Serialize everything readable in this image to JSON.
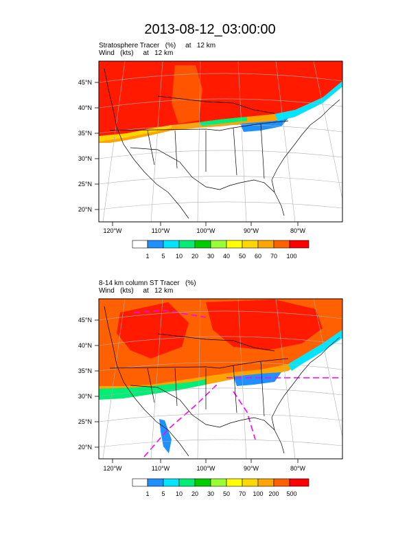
{
  "title": "2013-08-12_03:00:00",
  "panels": [
    {
      "subtitle_line1": "Stratosphere Tracer   (%)     at   12 km",
      "subtitle_line2": "Wind   (kts)     at   12 km",
      "lat_labels": [
        "45°N",
        "40°N",
        "35°N",
        "30°N",
        "25°N",
        "20°N"
      ],
      "lon_labels": [
        "120°W",
        "110°W",
        "100°W",
        "90°W",
        "80°W"
      ],
      "colorbar": {
        "colors": [
          "#ffffff",
          "#1e90ff",
          "#00e5ff",
          "#00ee76",
          "#00cd00",
          "#9aff32",
          "#ffff00",
          "#ffd700",
          "#ffa500",
          "#ff6000",
          "#ff0000"
        ],
        "labels": [
          "1",
          "5",
          "10",
          "20",
          "30",
          "40",
          "50",
          "60",
          "70",
          "100"
        ]
      }
    },
    {
      "subtitle_line1": "8-14 km column ST Tracer   (%)",
      "subtitle_line2": "Wind   (kts)     at   12 km",
      "lat_labels": [
        "45°N",
        "40°N",
        "35°N",
        "30°N",
        "25°N",
        "20°N"
      ],
      "lon_labels": [
        "120°W",
        "110°W",
        "100°W",
        "90°W",
        "80°W"
      ],
      "colorbar": {
        "colors": [
          "#ffffff",
          "#1e90ff",
          "#00e5ff",
          "#00ee76",
          "#00cd00",
          "#9aff32",
          "#ffff00",
          "#ffd700",
          "#ffa500",
          "#ff6000",
          "#ff0000"
        ],
        "labels": [
          "1",
          "5",
          "10",
          "20",
          "30",
          "50",
          "70",
          "100",
          "200",
          "500"
        ]
      }
    }
  ]
}
